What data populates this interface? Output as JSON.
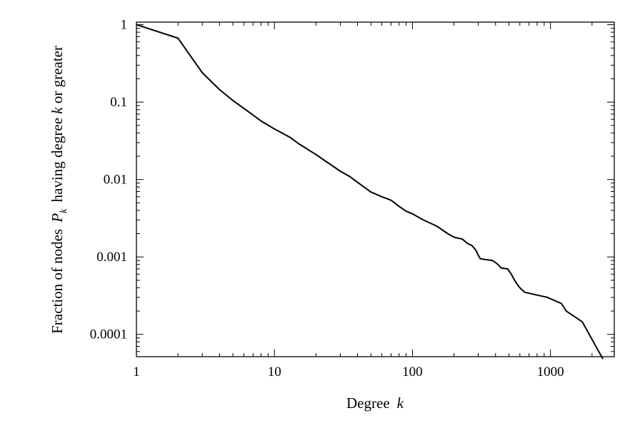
{
  "chart_data": {
    "type": "line",
    "xlabel": {
      "text": "Degree",
      "var": "k"
    },
    "ylabel": {
      "pre": "Fraction of nodes",
      "var": "P",
      "sub": "k",
      "mid": "having degree",
      "var2": "k",
      "post": "or greater"
    },
    "xscale": "log",
    "yscale": "log",
    "xlim": [
      1,
      2900
    ],
    "ylim": [
      5.15e-05,
      1.08
    ],
    "x_ticks": [
      {
        "value": 1,
        "label": "1"
      },
      {
        "value": 10,
        "label": "10"
      },
      {
        "value": 100,
        "label": "100"
      },
      {
        "value": 1000,
        "label": "1000"
      }
    ],
    "y_ticks": [
      {
        "value": 1,
        "label": "1"
      },
      {
        "value": 0.1,
        "label": "0.1"
      },
      {
        "value": 0.01,
        "label": "0.01"
      },
      {
        "value": 0.001,
        "label": "0.001"
      },
      {
        "value": 0.0001,
        "label": "0.0001"
      }
    ],
    "grid": false,
    "series": [
      {
        "color": "#000000",
        "x": [
          1,
          2,
          3,
          4,
          5,
          6,
          7,
          8,
          10,
          13,
          15,
          20,
          25,
          30,
          35,
          40,
          45,
          50,
          60,
          70,
          80,
          90,
          100,
          120,
          150,
          180,
          200,
          230,
          250,
          270,
          290,
          300,
          310,
          320,
          380,
          410,
          440,
          490,
          520,
          550,
          570,
          600,
          650,
          950,
          1200,
          1300,
          1700,
          2400
        ],
        "y": [
          1,
          0.67,
          0.24,
          0.145,
          0.105,
          0.083,
          0.068,
          0.057,
          0.045,
          0.035,
          0.029,
          0.021,
          0.016,
          0.0128,
          0.011,
          0.0092,
          0.0079,
          0.0069,
          0.006,
          0.0054,
          0.0045,
          0.0039,
          0.0036,
          0.003,
          0.0025,
          0.002,
          0.0018,
          0.0017,
          0.0015,
          0.0014,
          0.0012,
          0.00105,
          0.00095,
          0.00094,
          0.0009,
          0.00082,
          0.00072,
          0.0007,
          0.0006,
          0.0005,
          0.00045,
          0.0004,
          0.00035,
          0.0003,
          0.00025,
          0.0002,
          0.000145,
          4.8e-05
        ]
      }
    ]
  }
}
